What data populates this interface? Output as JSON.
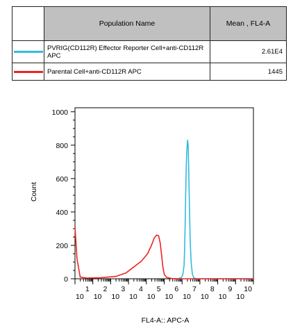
{
  "table": {
    "headers": [
      "",
      "Population Name",
      "Mean , FL4-A"
    ],
    "rows": [
      {
        "color": "#33bbdd",
        "name": "PVRIG(CD112R) Effector Reporter Cell+anti-CD112R APC",
        "mean": "2.61E4"
      },
      {
        "color": "#ee2222",
        "name": "Parental Cell+anti-CD112R APC",
        "mean": "1445"
      }
    ]
  },
  "chart_data": {
    "type": "line",
    "xlabel": "FL4-A:: APC-A",
    "ylabel": "Count",
    "x_scale": "log",
    "xlim": [
      1,
      10000000
    ],
    "ylim": [
      0,
      1024
    ],
    "y_ticks": [
      0,
      200,
      400,
      600,
      800,
      1000
    ],
    "x_ticks": [
      {
        "base": "10",
        "exp": "1"
      },
      {
        "base": "10",
        "exp": "2"
      },
      {
        "base": "10",
        "exp": "3"
      },
      {
        "base": "10",
        "exp": "4"
      },
      {
        "base": "10",
        "exp": "5"
      },
      {
        "base": "10",
        "exp": "6"
      },
      {
        "base": "10",
        "exp": "7"
      },
      {
        "base": "10",
        "exp": "8"
      },
      {
        "base": "10",
        "exp": "9"
      },
      {
        "base": "10",
        "exp": "10"
      }
    ],
    "series": [
      {
        "color": "#33bbdd",
        "points": [
          [
            8000,
            0
          ],
          [
            12000,
            2
          ],
          [
            15000,
            8
          ],
          [
            17000,
            25
          ],
          [
            19000,
            80
          ],
          [
            20000,
            180
          ],
          [
            21000,
            330
          ],
          [
            22000,
            500
          ],
          [
            23000,
            650
          ],
          [
            24500,
            770
          ],
          [
            26000,
            830
          ],
          [
            27500,
            800
          ],
          [
            29000,
            650
          ],
          [
            31000,
            430
          ],
          [
            33000,
            230
          ],
          [
            36000,
            100
          ],
          [
            40000,
            30
          ],
          [
            45000,
            8
          ],
          [
            52000,
            2
          ],
          [
            60000,
            0
          ],
          [
            200000,
            0
          ],
          [
            10000000,
            0
          ]
        ]
      },
      {
        "color": "#ee2222",
        "points": [
          [
            1,
            310
          ],
          [
            1.06,
            250
          ],
          [
            1.2,
            120
          ],
          [
            1.6,
            10
          ],
          [
            3,
            4
          ],
          [
            10,
            6
          ],
          [
            40,
            14
          ],
          [
            100,
            35
          ],
          [
            200,
            70
          ],
          [
            400,
            105
          ],
          [
            700,
            150
          ],
          [
            1000,
            200
          ],
          [
            1300,
            245
          ],
          [
            1600,
            262
          ],
          [
            1900,
            258
          ],
          [
            2200,
            215
          ],
          [
            2500,
            140
          ],
          [
            2800,
            70
          ],
          [
            3200,
            25
          ],
          [
            4000,
            8
          ],
          [
            6000,
            2
          ],
          [
            10000,
            0
          ],
          [
            10000000,
            0
          ]
        ]
      }
    ]
  }
}
